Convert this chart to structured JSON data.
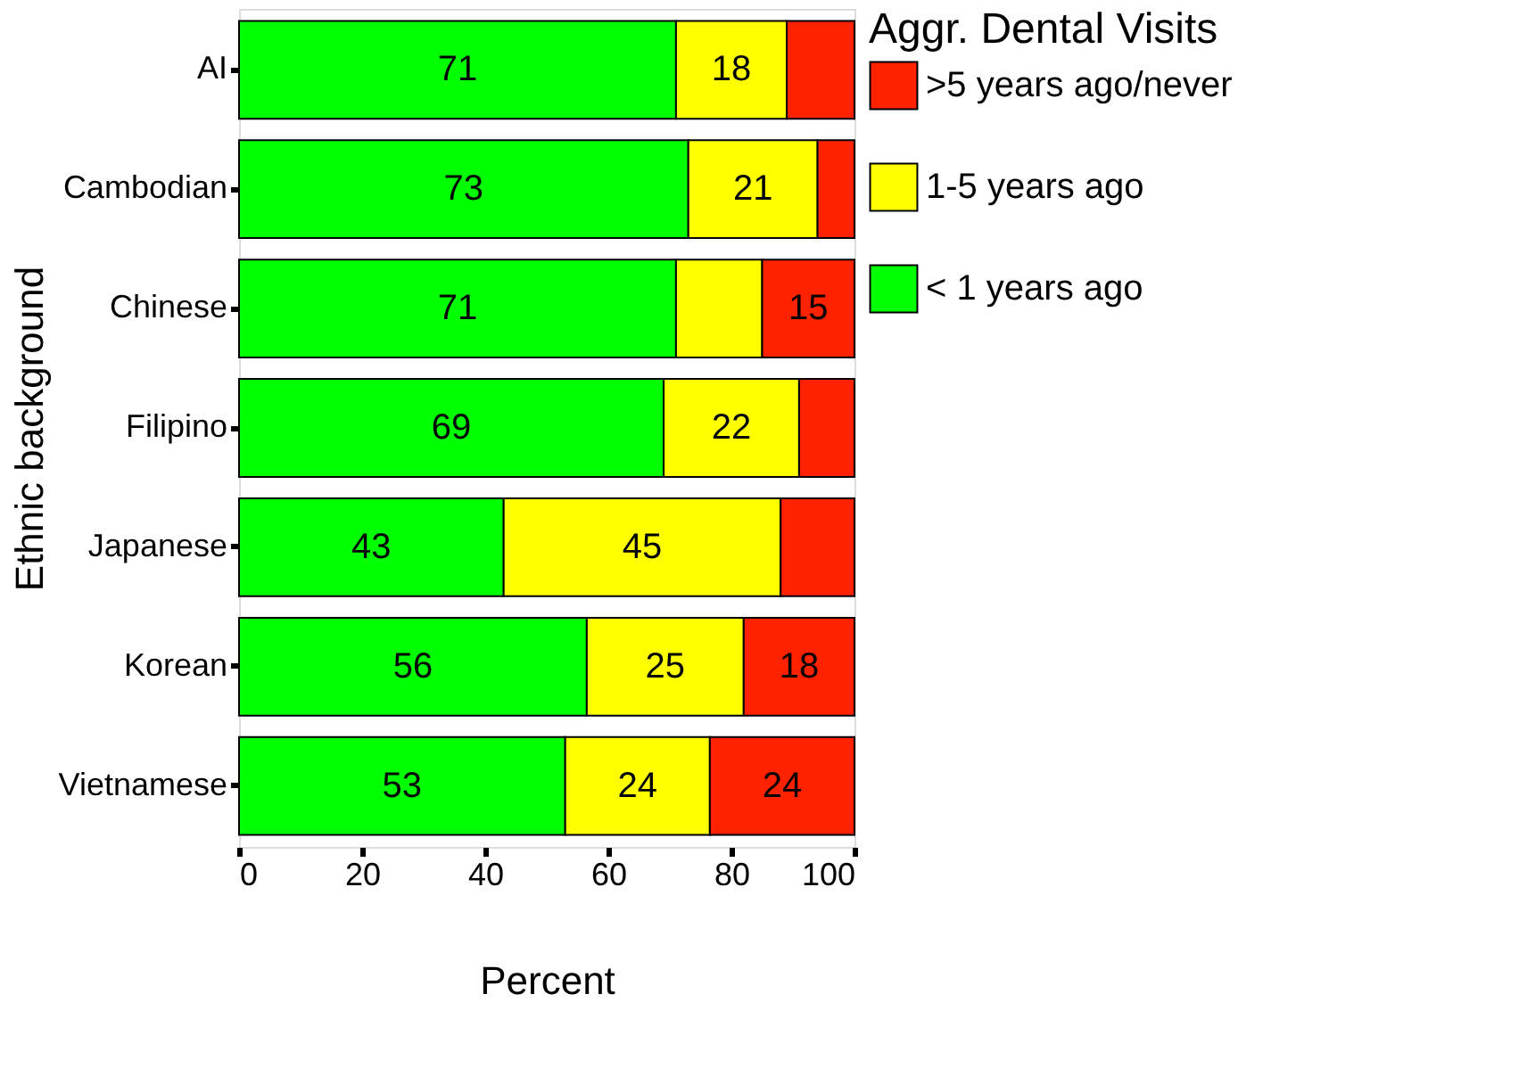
{
  "chart_data": {
    "type": "bar",
    "orientation": "horizontal",
    "stacked": true,
    "xlabel": "Percent",
    "ylabel": "Ethnic background",
    "legend_title": "Aggr. Dental Visits",
    "categories": [
      "AI",
      "Cambodian",
      "Chinese",
      "Filipino",
      "Japanese",
      "Korean",
      "Vietnamese"
    ],
    "series": [
      {
        "name": "< 1 years ago",
        "color": "#00ff00",
        "values": [
          71,
          73,
          71,
          69,
          43,
          56.5,
          53
        ],
        "value_labels": [
          "71",
          "73",
          "71",
          "69",
          "43",
          "56",
          "53"
        ]
      },
      {
        "name": "1-5 years ago",
        "color": "#ffff00",
        "values": [
          18,
          21,
          14,
          22,
          45,
          25.5,
          23.5
        ],
        "value_labels": [
          "18",
          "21",
          null,
          "22",
          "45",
          "25",
          "24"
        ]
      },
      {
        "name": ">5 years ago/never",
        "color": "#ff2200",
        "values": [
          11,
          6,
          15,
          9,
          12,
          18,
          23.5
        ],
        "value_labels": [
          null,
          null,
          "15",
          null,
          null,
          "18",
          "24"
        ]
      }
    ],
    "xlim": [
      0,
      100
    ],
    "xticks": [
      0,
      20,
      40,
      60,
      80,
      100
    ],
    "grid": false,
    "legend": "right"
  }
}
